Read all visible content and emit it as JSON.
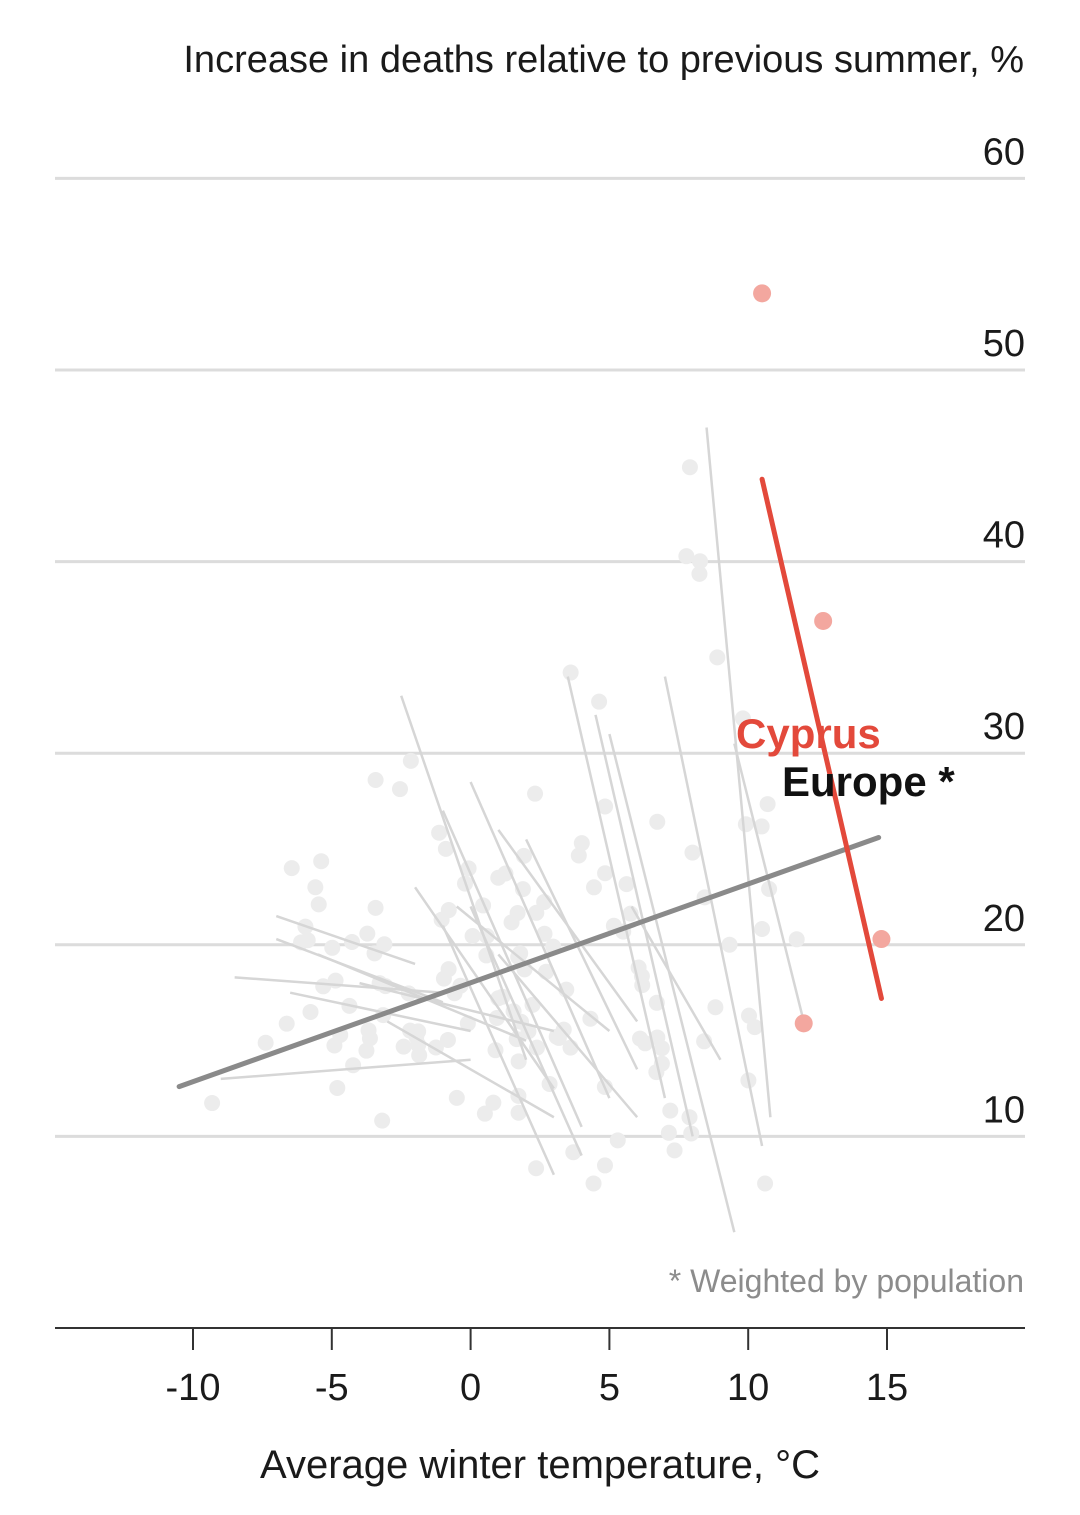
{
  "chart_data": {
    "type": "scatter",
    "ylabel": "Increase in deaths relative to previous summer, %",
    "xlabel": "Average winter temperature, °C",
    "footnote": "* Weighted by population",
    "xlim": [
      -15,
      20
    ],
    "ylim": [
      0,
      60
    ],
    "x_ticks": [
      -10,
      -5,
      0,
      5,
      10,
      15
    ],
    "x_tick_labels": [
      "-10",
      "-5",
      "0",
      "5",
      "10",
      "15"
    ],
    "y_ticks": [
      10,
      20,
      30,
      40,
      50,
      60
    ],
    "y_tick_labels": [
      "10",
      "20",
      "30",
      "40",
      "50",
      "60"
    ],
    "grid": "horizontal",
    "colors": {
      "highlight": "#e3493b",
      "highlight_points": "#f3a79f",
      "europe_line": "#8a8a8a",
      "background_lines": "#d6d6d6",
      "background_points": "#ececec",
      "grid": "#dcdcdc",
      "axis": "#333333"
    },
    "highlight_series": {
      "name": "Cyprus",
      "points": [
        [
          10.5,
          54.0
        ],
        [
          12.7,
          36.9
        ],
        [
          12.0,
          15.9
        ],
        [
          14.8,
          20.3
        ]
      ],
      "trend": [
        [
          10.5,
          44.3
        ],
        [
          14.8,
          17.2
        ]
      ]
    },
    "europe_series": {
      "name": "Europe *",
      "trend": [
        [
          -10.5,
          12.6
        ],
        [
          14.7,
          25.6
        ]
      ]
    },
    "background_lines": [
      [
        [
          -7,
          21.5
        ],
        [
          -2,
          19.0
        ]
      ],
      [
        [
          -7,
          20.3
        ],
        [
          -1,
          17.0
        ]
      ],
      [
        [
          -8.5,
          18.3
        ],
        [
          -1,
          17.5
        ]
      ],
      [
        [
          -6.5,
          17.5
        ],
        [
          0,
          15.5
        ]
      ],
      [
        [
          -9,
          13.0
        ],
        [
          0,
          14.0
        ]
      ],
      [
        [
          -5.5,
          19.5
        ],
        [
          2,
          15.0
        ]
      ],
      [
        [
          -4,
          18.0
        ],
        [
          3,
          15.5
        ]
      ],
      [
        [
          -3,
          16.0
        ],
        [
          3,
          11.0
        ]
      ],
      [
        [
          -2.5,
          33.0
        ],
        [
          2,
          14.0
        ]
      ],
      [
        [
          -2,
          23.0
        ],
        [
          3,
          12.5
        ]
      ],
      [
        [
          -1,
          27.0
        ],
        [
          4,
          10.5
        ]
      ],
      [
        [
          0,
          28.5
        ],
        [
          5,
          12.0
        ]
      ],
      [
        [
          -0.5,
          22.0
        ],
        [
          5,
          15.5
        ]
      ],
      [
        [
          1,
          26.0
        ],
        [
          6,
          16.0
        ]
      ],
      [
        [
          2,
          25.5
        ],
        [
          6,
          13.5
        ]
      ],
      [
        [
          3.5,
          34.0
        ],
        [
          7,
          12.0
        ]
      ],
      [
        [
          4.5,
          32.0
        ],
        [
          8,
          10.0
        ]
      ],
      [
        [
          5,
          31.0
        ],
        [
          9.5,
          5.0
        ]
      ],
      [
        [
          5.8,
          22.0
        ],
        [
          9,
          14.0
        ]
      ],
      [
        [
          7,
          34.0
        ],
        [
          10.5,
          9.5
        ]
      ],
      [
        [
          8.5,
          47.0
        ],
        [
          10.8,
          11.0
        ]
      ],
      [
        [
          9.5,
          30.5
        ],
        [
          12,
          16.0
        ]
      ],
      [
        [
          0,
          22.0
        ],
        [
          4,
          9.0
        ]
      ],
      [
        [
          1,
          19.5
        ],
        [
          6,
          11.0
        ]
      ],
      [
        [
          -1,
          21.0
        ],
        [
          3,
          8.0
        ]
      ]
    ]
  }
}
